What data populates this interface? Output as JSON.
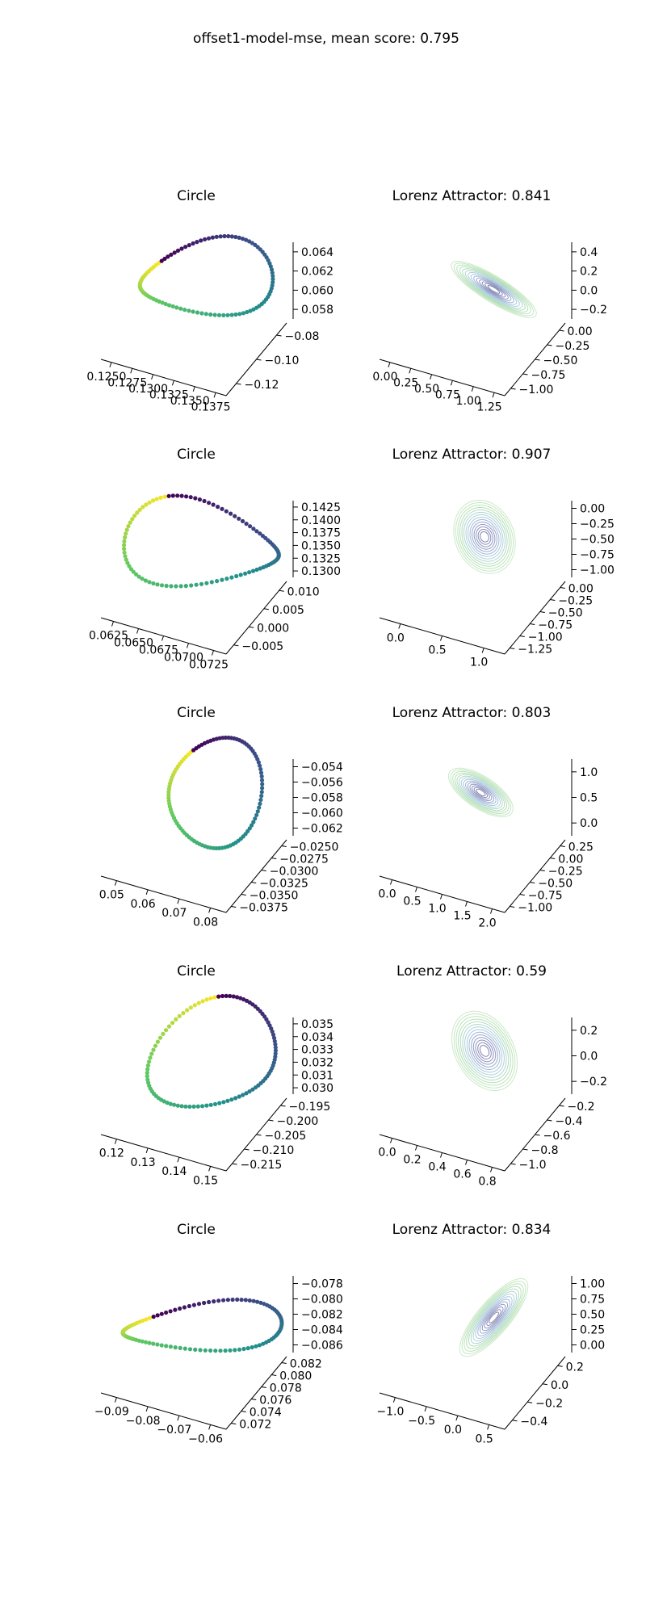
{
  "figure": {
    "title": "offset1-model-mse, mean score: 0.795"
  },
  "colors": {
    "viridis": [
      "#440154",
      "#3b528b",
      "#21918c",
      "#5ec962",
      "#fde725"
    ],
    "lorenz_trace": [
      "#1b1d6e",
      "#3a4a9c",
      "#6aa9c8",
      "#74c476",
      "#a1d99b"
    ]
  },
  "chart_data": [
    {
      "type": "scatter",
      "title": "Circle",
      "row": 0,
      "col": 0,
      "xticks": [
        "0.1250",
        "0.1275",
        "0.1300",
        "0.1325",
        "0.1350",
        "0.1375"
      ],
      "yticks": [
        "−0.08",
        "−0.10",
        "−0.12"
      ],
      "zticks": [
        "0.064",
        "0.062",
        "0.060",
        "0.058"
      ],
      "shape": "loop",
      "loop": {
        "cx": 0.5,
        "cy": 0.44,
        "rx": 0.36,
        "ry": 0.27,
        "tilt": -0.18,
        "warp": 0.35
      }
    },
    {
      "type": "line",
      "title": "Lorenz Attractor: 0.841",
      "row": 0,
      "col": 1,
      "score": 0.841,
      "xticks": [
        "0.00",
        "0.25",
        "0.50",
        "0.75",
        "1.00",
        "1.25"
      ],
      "yticks": [
        "0.00",
        "−0.25",
        "−0.50",
        "−0.75",
        "−1.00"
      ],
      "zticks": [
        "0.4",
        "0.2",
        "0.0",
        "−0.2"
      ],
      "shape": "lorenz",
      "attractor": {
        "cx": 0.55,
        "cy": 0.52,
        "spread": 0.55,
        "angle": 0.72,
        "thin": 0.28
      }
    },
    {
      "type": "scatter",
      "title": "Circle",
      "row": 1,
      "col": 0,
      "xticks": [
        "0.0625",
        "0.0650",
        "0.0675",
        "0.0700",
        "0.0725"
      ],
      "yticks": [
        "0.010",
        "0.005",
        "0.000",
        "−0.005"
      ],
      "zticks": [
        "0.1425",
        "0.1400",
        "0.1375",
        "0.1350",
        "0.1325",
        "0.1300"
      ],
      "shape": "loop",
      "loop": {
        "cx": 0.48,
        "cy": 0.5,
        "rx": 0.42,
        "ry": 0.3,
        "tilt": 0.2,
        "warp": -0.5
      }
    },
    {
      "type": "line",
      "title": "Lorenz Attractor: 0.907",
      "row": 1,
      "col": 1,
      "score": 0.907,
      "xticks": [
        "0.0",
        "0.5",
        "1.0"
      ],
      "yticks": [
        "0.00",
        "−0.25",
        "−0.50",
        "−0.75",
        "−1.00",
        "−1.25"
      ],
      "zticks": [
        "0.00",
        "−0.25",
        "−0.50",
        "−0.75",
        "−1.00"
      ],
      "shape": "lorenz",
      "attractor": {
        "cx": 0.5,
        "cy": 0.44,
        "spread": 0.5,
        "angle": 1.4,
        "thin": 0.6
      }
    },
    {
      "type": "scatter",
      "title": "Circle",
      "row": 2,
      "col": 0,
      "xticks": [
        "0.05",
        "0.06",
        "0.07",
        "0.08"
      ],
      "yticks": [
        "−0.0250",
        "−0.0275",
        "−0.0300",
        "−0.0325",
        "−0.0350",
        "−0.0375"
      ],
      "zticks": [
        "−0.054",
        "−0.056",
        "−0.058",
        "−0.060",
        "−0.062"
      ],
      "shape": "loop",
      "loop": {
        "cx": 0.55,
        "cy": 0.42,
        "rx": 0.25,
        "ry": 0.4,
        "tilt": 0.1,
        "warp": 0.2
      }
    },
    {
      "type": "line",
      "title": "Lorenz Attractor: 0.803",
      "row": 2,
      "col": 1,
      "score": 0.803,
      "xticks": [
        "0.0",
        "0.5",
        "1.0",
        "1.5",
        "2.0"
      ],
      "yticks": [
        "0.25",
        "0.00",
        "−0.25",
        "−0.50",
        "−0.75",
        "−1.00"
      ],
      "zticks": [
        "1.0",
        "0.5",
        "0.0"
      ],
      "shape": "lorenz",
      "attractor": {
        "cx": 0.48,
        "cy": 0.42,
        "spread": 0.42,
        "angle": 0.8,
        "thin": 0.45
      }
    },
    {
      "type": "scatter",
      "title": "Circle",
      "row": 3,
      "col": 0,
      "xticks": [
        "0.12",
        "0.13",
        "0.14",
        "0.15"
      ],
      "yticks": [
        "−0.195",
        "−0.200",
        "−0.205",
        "−0.210",
        "−0.215"
      ],
      "zticks": [
        "0.035",
        "0.034",
        "0.033",
        "0.032",
        "0.031",
        "0.030"
      ],
      "shape": "loop",
      "loop": {
        "cx": 0.55,
        "cy": 0.45,
        "rx": 0.32,
        "ry": 0.42,
        "tilt": 0.5,
        "warp": -0.3
      }
    },
    {
      "type": "line",
      "title": "Lorenz Attractor: 0.59",
      "row": 3,
      "col": 1,
      "score": 0.59,
      "xticks": [
        "0.0",
        "0.2",
        "0.4",
        "0.6",
        "0.8"
      ],
      "yticks": [
        "−0.2",
        "−0.4",
        "−0.6",
        "−0.8",
        "−1.0"
      ],
      "zticks": [
        "0.2",
        "0.0",
        "−0.2"
      ],
      "shape": "lorenz",
      "attractor": {
        "cx": 0.5,
        "cy": 0.42,
        "spread": 0.55,
        "angle": 1.3,
        "thin": 0.55
      }
    },
    {
      "type": "scatter",
      "title": "Circle",
      "row": 4,
      "col": 0,
      "xticks": [
        "−0.09",
        "−0.08",
        "−0.07",
        "−0.06"
      ],
      "yticks": [
        "0.082",
        "0.080",
        "0.078",
        "0.076",
        "0.074",
        "0.072"
      ],
      "zticks": [
        "−0.078",
        "−0.080",
        "−0.082",
        "−0.084",
        "−0.086"
      ],
      "shape": "loop",
      "loop": {
        "cx": 0.48,
        "cy": 0.55,
        "rx": 0.43,
        "ry": 0.17,
        "tilt": -0.1,
        "warp": 0.25
      }
    },
    {
      "type": "line",
      "title": "Lorenz Attractor: 0.834",
      "row": 4,
      "col": 1,
      "score": 0.834,
      "xticks": [
        "−1.0",
        "−0.5",
        "0.0",
        "0.5"
      ],
      "yticks": [
        "0.2",
        "0.0",
        "−0.2",
        "−0.4"
      ],
      "zticks": [
        "1.00",
        "0.75",
        "0.50",
        "0.25",
        "0.00"
      ],
      "shape": "lorenz",
      "attractor": {
        "cx": 0.55,
        "cy": 0.48,
        "spread": 0.6,
        "angle": 2.1,
        "thin": 0.3
      }
    }
  ]
}
